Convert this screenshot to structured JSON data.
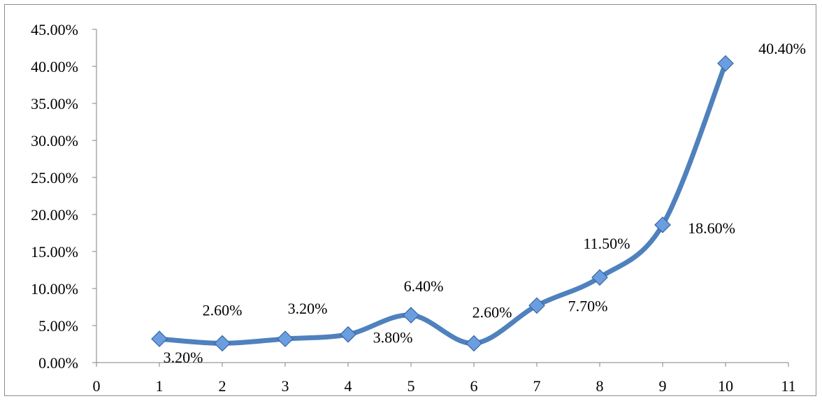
{
  "chart_data": {
    "type": "line",
    "title": "",
    "xlabel": "",
    "ylabel": "",
    "x": [
      1,
      2,
      3,
      4,
      5,
      6,
      7,
      8,
      9,
      10
    ],
    "series": [
      {
        "values": [
          3.2,
          2.6,
          3.2,
          3.8,
          6.4,
          2.6,
          7.7,
          11.5,
          18.6,
          40.4
        ],
        "data_labels": [
          "3.20%",
          "2.60%",
          "3.20%",
          "3.80%",
          "6.40%",
          "2.60%",
          "7.70%",
          "11.50%",
          "18.60%",
          "40.40%"
        ],
        "color": "#4f81bd",
        "marker": "diamond",
        "smooth": true
      }
    ],
    "xlim": [
      0,
      11
    ],
    "ylim": [
      0,
      45
    ],
    "x_ticks": [
      "0",
      "1",
      "2",
      "3",
      "4",
      "5",
      "6",
      "7",
      "8",
      "9",
      "10",
      "11"
    ],
    "y_ticks": [
      "0.00%",
      "5.00%",
      "10.00%",
      "15.00%",
      "20.00%",
      "25.00%",
      "30.00%",
      "35.00%",
      "40.00%",
      "45.00%"
    ],
    "grid": false,
    "legend": "none",
    "colors": {
      "line": "#4f81bd",
      "marker_fill": "#6b9ee0",
      "marker_stroke": "#3a65a0",
      "axis": "#808080"
    }
  }
}
